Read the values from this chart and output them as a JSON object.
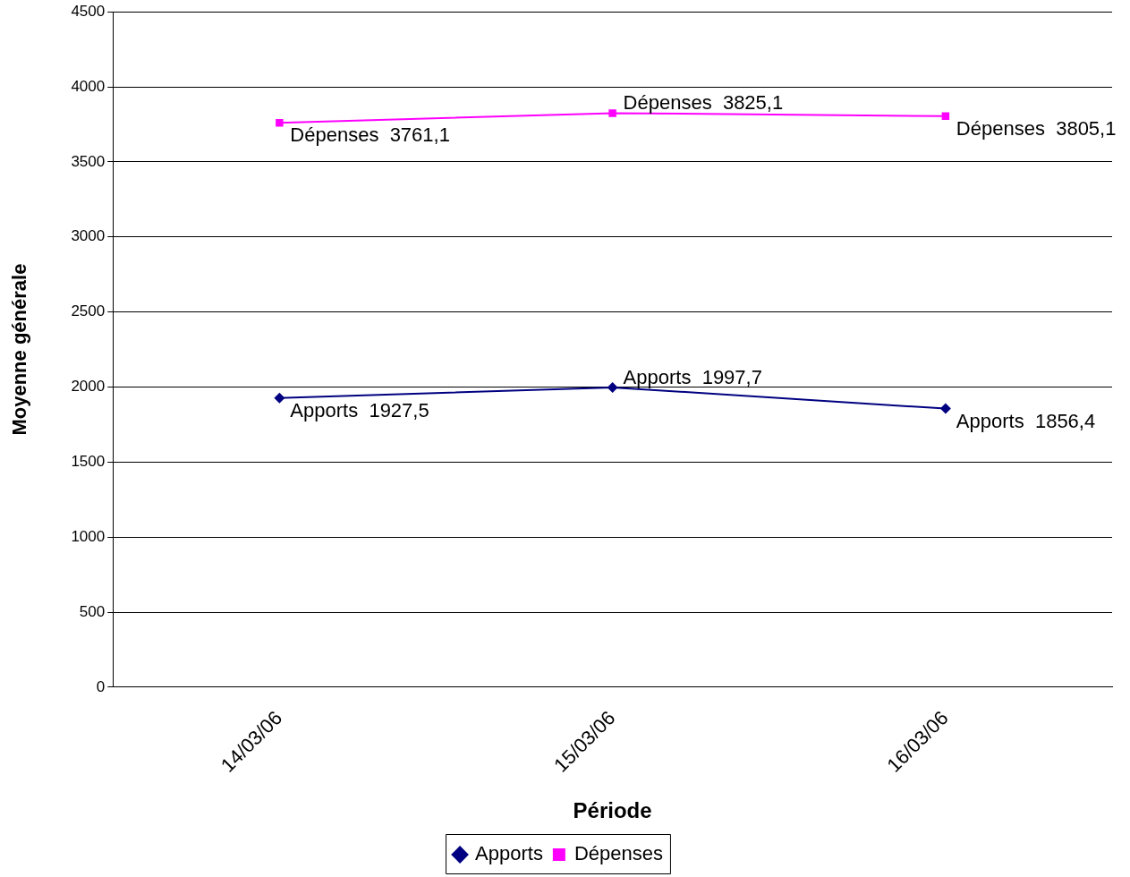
{
  "chart_data": {
    "type": "line",
    "xlabel": "Période",
    "ylabel": "Moyenne générale",
    "categories": [
      "14/03/06",
      "15/03/06",
      "16/03/06"
    ],
    "series": [
      {
        "name": "Apports",
        "color": "#000080",
        "marker": "diamond",
        "values": [
          1927.5,
          1997.7,
          1856.4
        ],
        "value_labels": [
          "Apports  1927,5",
          "Apports  1997,7",
          "Apports  1856,4"
        ]
      },
      {
        "name": "Dépenses",
        "color": "#ff00ff",
        "marker": "square",
        "values": [
          3761.1,
          3825.1,
          3805.1
        ],
        "value_labels": [
          "Dépenses  3761,1",
          "Dépenses  3825,1",
          "Dépenses  3805,1"
        ]
      }
    ],
    "ylim": [
      0,
      4500
    ],
    "yticks": [
      0,
      500,
      1000,
      1500,
      2000,
      2500,
      3000,
      3500,
      4000,
      4500
    ],
    "grid": "y",
    "legend": "bottom",
    "line_style": "solid"
  }
}
